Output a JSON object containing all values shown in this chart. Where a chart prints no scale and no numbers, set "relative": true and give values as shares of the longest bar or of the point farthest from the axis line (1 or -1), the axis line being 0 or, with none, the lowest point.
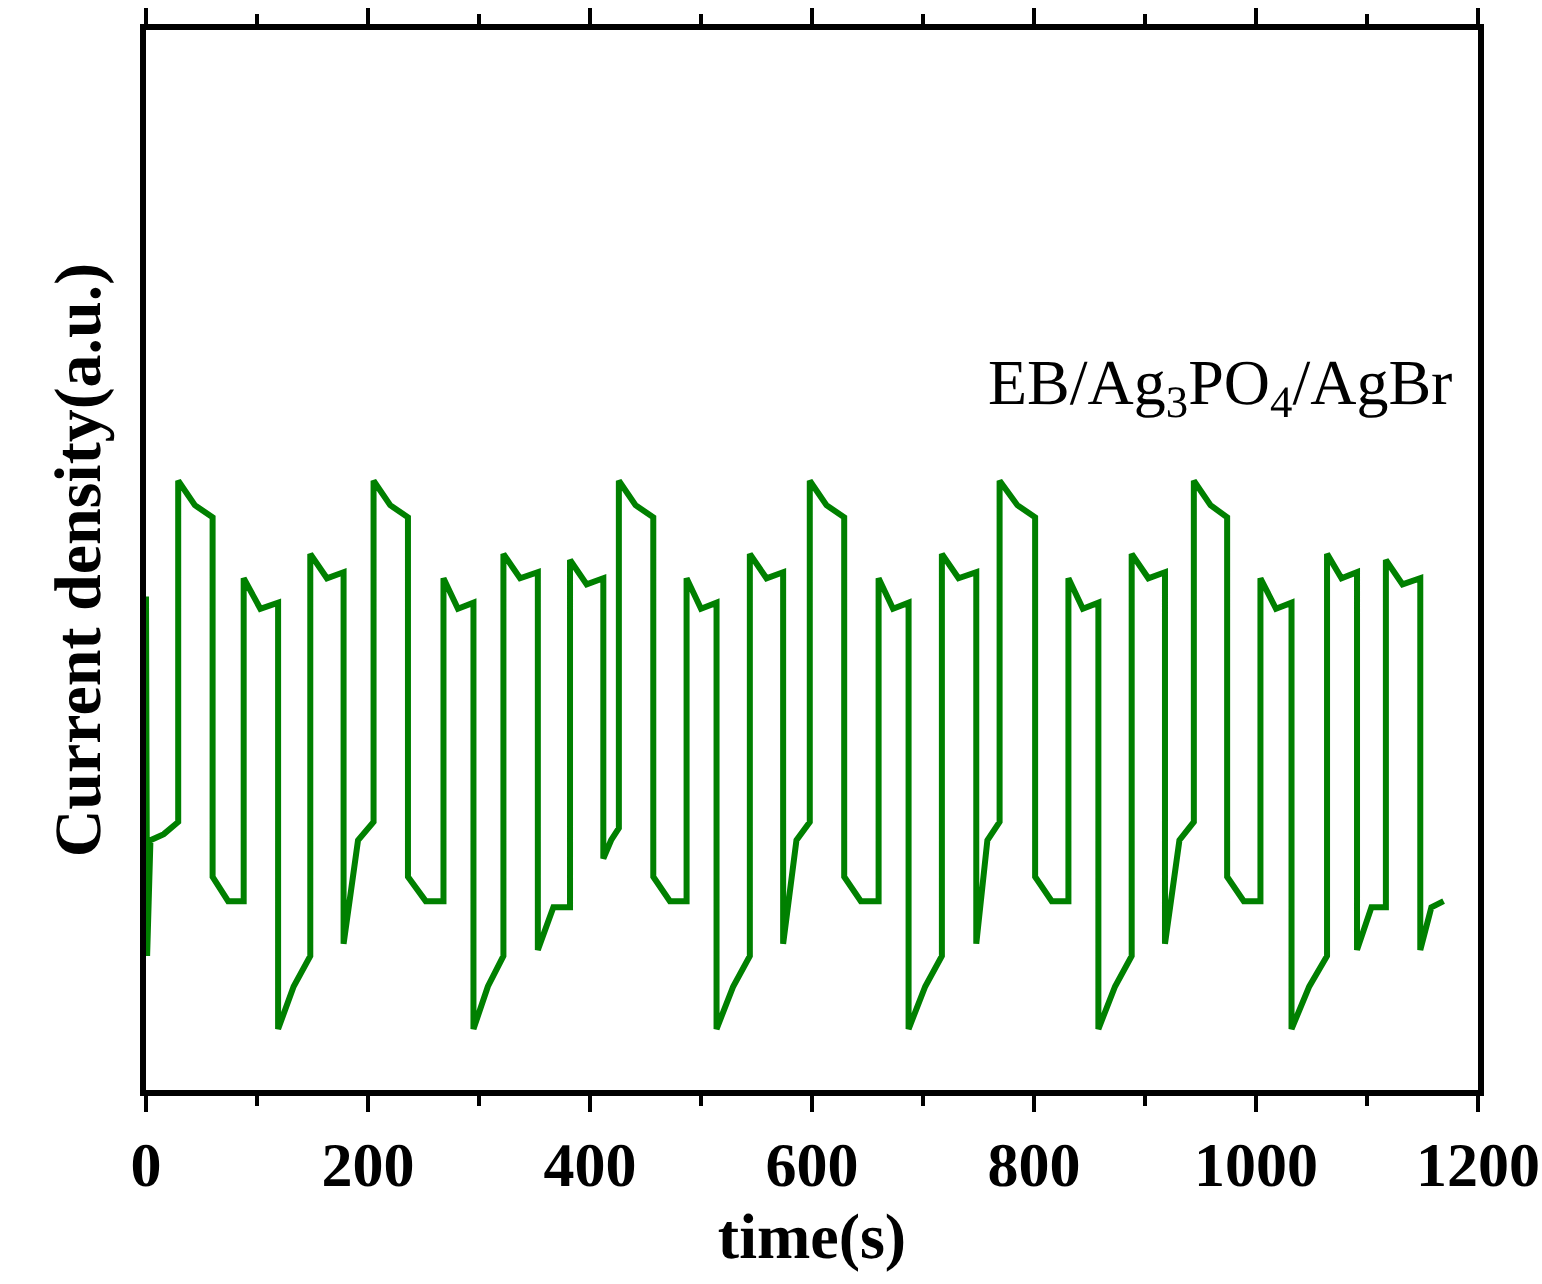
{
  "chart_data": {
    "type": "line",
    "relative": true,
    "xlabel": "time(s)",
    "ylabel": "Current density(a.u.)",
    "xlim": [
      0,
      1200
    ],
    "xticks": [
      0,
      200,
      400,
      600,
      800,
      1000,
      1200
    ],
    "legend": false,
    "grid": false,
    "marker": "none",
    "line_style": "solid",
    "series": [
      {
        "name": "EB/Ag$_{3}$PO$_{4}$/AgBr",
        "color": "#008000",
        "x": [
          0,
          1,
          4,
          16,
          29,
          29,
          44,
          60,
          60,
          74,
          88,
          88,
          103,
          119,
          119,
          133,
          148,
          148,
          163,
          178,
          178,
          191,
          205,
          205,
          220,
          236,
          236,
          252,
          268,
          268,
          281,
          295,
          295,
          308,
          322,
          322,
          337,
          353,
          353,
          367,
          382,
          382,
          397,
          412,
          412,
          419,
          426,
          426,
          441,
          457,
          457,
          472,
          487,
          487,
          500,
          514,
          514,
          529,
          544,
          544,
          559,
          574,
          574,
          586,
          598,
          598,
          613,
          629,
          629,
          644,
          660,
          660,
          673,
          687,
          687,
          702,
          717,
          717,
          732,
          748,
          748,
          758,
          769,
          769,
          785,
          801,
          801,
          816,
          831,
          831,
          844,
          858,
          858,
          873,
          888,
          888,
          903,
          918,
          918,
          931,
          944,
          944,
          959,
          974,
          974,
          989,
          1004,
          1004,
          1018,
          1032,
          1032,
          1048,
          1064,
          1064,
          1077,
          1091,
          1091,
          1104,
          1117,
          1117,
          1132,
          1148,
          1148,
          1158,
          1169
        ],
        "values": [
          0.81,
          0.22,
          0.41,
          0.42,
          0.44,
          1.0,
          0.96,
          0.94,
          0.35,
          0.31,
          0.31,
          0.84,
          0.79,
          0.8,
          0.1,
          0.17,
          0.22,
          0.88,
          0.84,
          0.85,
          0.24,
          0.41,
          0.44,
          1.0,
          0.96,
          0.94,
          0.35,
          0.31,
          0.31,
          0.84,
          0.79,
          0.8,
          0.1,
          0.17,
          0.22,
          0.88,
          0.84,
          0.85,
          0.23,
          0.3,
          0.3,
          0.87,
          0.83,
          0.84,
          0.38,
          0.41,
          0.43,
          1.0,
          0.96,
          0.94,
          0.35,
          0.31,
          0.31,
          0.84,
          0.79,
          0.8,
          0.1,
          0.17,
          0.22,
          0.88,
          0.84,
          0.85,
          0.24,
          0.41,
          0.44,
          1.0,
          0.96,
          0.94,
          0.35,
          0.31,
          0.31,
          0.84,
          0.79,
          0.8,
          0.1,
          0.17,
          0.22,
          0.88,
          0.84,
          0.85,
          0.24,
          0.41,
          0.44,
          1.0,
          0.96,
          0.94,
          0.35,
          0.31,
          0.31,
          0.84,
          0.79,
          0.8,
          0.1,
          0.17,
          0.22,
          0.88,
          0.84,
          0.85,
          0.24,
          0.41,
          0.44,
          1.0,
          0.96,
          0.94,
          0.35,
          0.31,
          0.31,
          0.84,
          0.79,
          0.8,
          0.1,
          0.17,
          0.22,
          0.88,
          0.84,
          0.85,
          0.23,
          0.3,
          0.3,
          0.87,
          0.83,
          0.84,
          0.23,
          0.3,
          0.31
        ]
      }
    ]
  }
}
